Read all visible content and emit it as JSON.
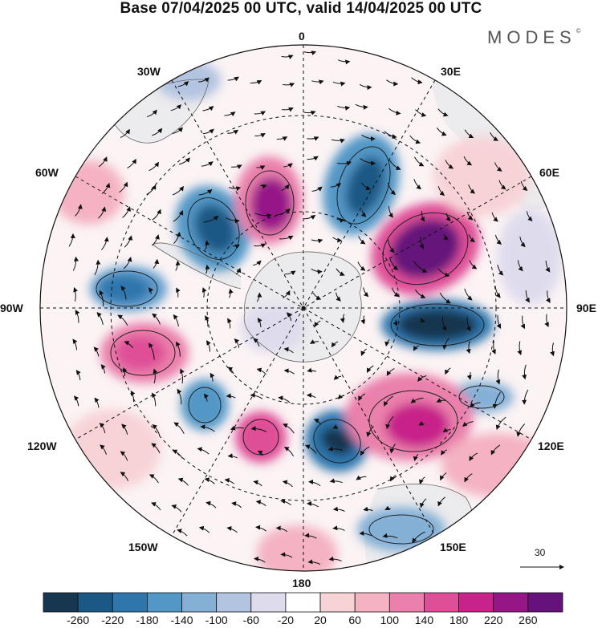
{
  "header": {
    "title": "Base 07/04/2025 00 UTC, valid 14/04/2025 00 UTC",
    "brand": "MODES",
    "brand_mark": "©"
  },
  "map": {
    "projection": "south-polar-stereographic",
    "longitude_labels": {
      "lon_0": "0",
      "lon_30e": "30E",
      "lon_60e": "60E",
      "lon_90e": "90E",
      "lon_120e": "120E",
      "lon_150e": "150E",
      "lon_180": "180",
      "lon_150w": "150W",
      "lon_120w": "120W",
      "lon_90w": "90W",
      "lon_60w": "60W",
      "lon_30w": "30W"
    },
    "vector_scale_label": "30"
  },
  "colorbar": {
    "ticks": [
      "-260",
      "-220",
      "-180",
      "-140",
      "-100",
      "-60",
      "-20",
      "20",
      "60",
      "100",
      "140",
      "180",
      "220",
      "260"
    ],
    "colors": [
      "#17364f",
      "#1c5885",
      "#2f76ad",
      "#5297c6",
      "#85b0d6",
      "#b3c4e1",
      "#dedbed",
      "#ffffff",
      "#f7d3d6",
      "#f4b2c2",
      "#ea80ac",
      "#df4f98",
      "#c8238a",
      "#961688",
      "#65127a"
    ]
  }
}
